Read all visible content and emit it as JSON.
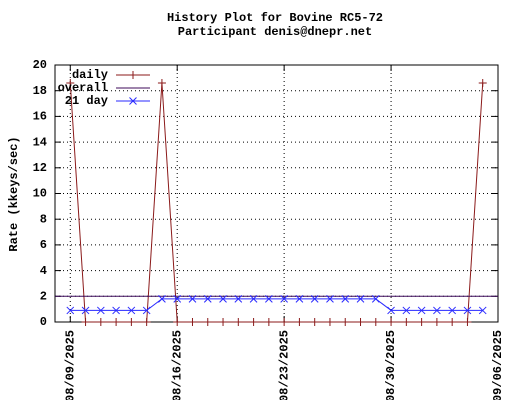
{
  "chart_data": {
    "type": "line",
    "title": "History Plot for Bovine RC5-72",
    "subtitle": "Participant denis@dnepr.net",
    "y_label": "Rate (kkeys/sec)",
    "x": [
      "2025-08-09",
      "2025-08-10",
      "2025-08-11",
      "2025-08-12",
      "2025-08-13",
      "2025-08-14",
      "2025-08-15",
      "2025-08-16",
      "2025-08-17",
      "2025-08-18",
      "2025-08-19",
      "2025-08-20",
      "2025-08-21",
      "2025-08-22",
      "2025-08-23",
      "2025-08-24",
      "2025-08-25",
      "2025-08-26",
      "2025-08-27",
      "2025-08-28",
      "2025-08-29",
      "2025-08-30",
      "2025-08-31",
      "2025-09-01",
      "2025-09-02",
      "2025-09-03",
      "2025-09-04",
      "2025-09-05"
    ],
    "series": [
      {
        "name": "daily",
        "color": "#8b1a1a",
        "marker": "plus",
        "values": [
          18.6,
          0,
          0,
          0,
          0,
          0,
          18.6,
          0,
          0,
          0,
          0,
          0,
          0,
          0,
          0,
          0,
          0,
          0,
          0,
          0,
          0,
          0,
          0,
          0,
          0,
          0,
          0,
          18.6
        ]
      },
      {
        "name": "overall",
        "color": "#3c0a5a",
        "value": 2.0
      },
      {
        "name": "21 day",
        "color": "#2a2aff",
        "marker": "cross",
        "values": [
          0.9,
          0.9,
          0.9,
          0.9,
          0.9,
          0.9,
          1.8,
          1.8,
          1.8,
          1.8,
          1.8,
          1.8,
          1.8,
          1.8,
          1.8,
          1.8,
          1.8,
          1.8,
          1.8,
          1.8,
          1.8,
          0.9,
          0.9,
          0.9,
          0.9,
          0.9,
          0.9,
          0.9
        ]
      }
    ],
    "xlim": [
      "2025-08-08",
      "2025-09-06"
    ],
    "xticks": [
      {
        "value": "2025-08-09",
        "label": "08/09/2025"
      },
      {
        "value": "2025-08-16",
        "label": "08/16/2025"
      },
      {
        "value": "2025-08-23",
        "label": "08/23/2025"
      },
      {
        "value": "2025-08-30",
        "label": "08/30/2025"
      },
      {
        "value": "2025-09-06",
        "label": "09/06/2025"
      }
    ],
    "ylim": [
      0,
      20
    ],
    "yticks": [
      0,
      2,
      4,
      6,
      8,
      10,
      12,
      14,
      16,
      18,
      20
    ],
    "grid": true,
    "legend": "top-left"
  }
}
